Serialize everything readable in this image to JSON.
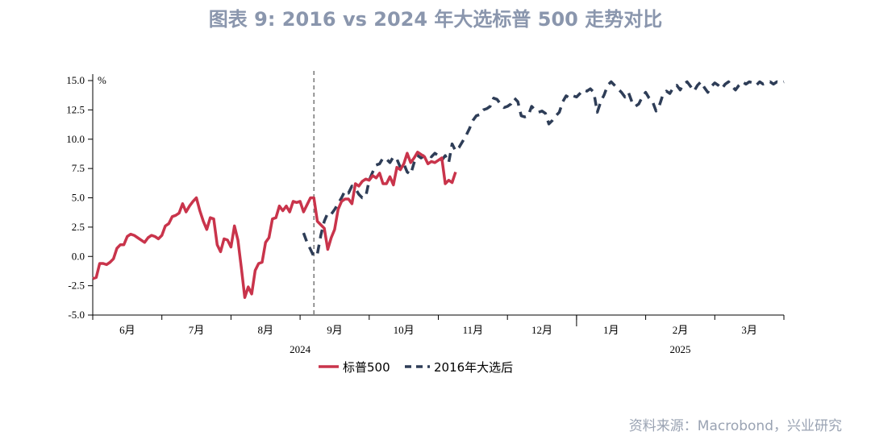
{
  "title": "图表 9:  2016 vs 2024 年大选标普 500 走势对比",
  "source": "资料来源：Macrobond，兴业研究",
  "chart_data": {
    "type": "line",
    "ylabel": "%",
    "ylim": [
      -5.0,
      15.0
    ],
    "yticks": [
      "15.0",
      "12.5",
      "10.0",
      "7.5",
      "5.0",
      "2.5",
      "0.0",
      "-2.5",
      "-5.0"
    ],
    "xlim": [
      0,
      200
    ],
    "months": [
      {
        "label": "6月",
        "start": 0,
        "end": 20
      },
      {
        "label": "7月",
        "start": 20,
        "end": 40
      },
      {
        "label": "8月",
        "start": 40,
        "end": 60
      },
      {
        "label": "9月",
        "start": 60,
        "end": 80
      },
      {
        "label": "10月",
        "start": 80,
        "end": 100
      },
      {
        "label": "11月",
        "start": 100,
        "end": 120
      },
      {
        "label": "12月",
        "start": 120,
        "end": 140
      },
      {
        "label": "1月",
        "start": 140,
        "end": 160
      },
      {
        "label": "2月",
        "start": 160,
        "end": 180
      },
      {
        "label": "3月",
        "start": 180,
        "end": 200
      }
    ],
    "years": [
      {
        "label": "2024",
        "at": 60
      },
      {
        "label": "2025",
        "at": 170
      }
    ],
    "year_divider_at": 140,
    "election_marker_at": 64,
    "series": [
      {
        "name": "标普500",
        "color": "#c9344b",
        "style": "solid",
        "points": [
          [
            0,
            -1.9
          ],
          [
            1,
            -1.8
          ],
          [
            2,
            -0.6
          ],
          [
            3,
            -0.6
          ],
          [
            4,
            -0.7
          ],
          [
            5,
            -0.5
          ],
          [
            6,
            -0.2
          ],
          [
            7,
            0.7
          ],
          [
            8,
            1.0
          ],
          [
            9,
            1.0
          ],
          [
            10,
            1.7
          ],
          [
            11,
            1.9
          ],
          [
            12,
            1.8
          ],
          [
            13,
            1.6
          ],
          [
            14,
            1.4
          ],
          [
            15,
            1.2
          ],
          [
            16,
            1.6
          ],
          [
            17,
            1.8
          ],
          [
            18,
            1.7
          ],
          [
            19,
            1.5
          ],
          [
            20,
            1.8
          ],
          [
            21,
            2.6
          ],
          [
            22,
            2.8
          ],
          [
            23,
            3.4
          ],
          [
            24,
            3.5
          ],
          [
            25,
            3.7
          ],
          [
            26,
            4.5
          ],
          [
            27,
            3.8
          ],
          [
            28,
            4.3
          ],
          [
            29,
            4.7
          ],
          [
            30,
            5.0
          ],
          [
            31,
            3.9
          ],
          [
            32,
            3.0
          ],
          [
            33,
            2.3
          ],
          [
            34,
            3.3
          ],
          [
            35,
            3.2
          ],
          [
            36,
            1.0
          ],
          [
            37,
            0.4
          ],
          [
            38,
            1.5
          ],
          [
            39,
            1.4
          ],
          [
            40,
            0.8
          ],
          [
            41,
            2.6
          ],
          [
            42,
            1.4
          ],
          [
            43,
            -1.0
          ],
          [
            44,
            -3.5
          ],
          [
            45,
            -2.6
          ],
          [
            46,
            -3.2
          ],
          [
            47,
            -1.2
          ],
          [
            48,
            -0.6
          ],
          [
            49,
            -0.5
          ],
          [
            50,
            1.2
          ],
          [
            51,
            1.6
          ],
          [
            52,
            3.2
          ],
          [
            53,
            3.3
          ],
          [
            54,
            4.3
          ],
          [
            55,
            3.9
          ],
          [
            56,
            4.3
          ],
          [
            57,
            3.8
          ],
          [
            58,
            4.7
          ],
          [
            59,
            4.6
          ],
          [
            60,
            4.7
          ],
          [
            61,
            3.8
          ],
          [
            62,
            4.4
          ],
          [
            63,
            5.0
          ],
          [
            64,
            5.0
          ],
          [
            65,
            3.0
          ],
          [
            66,
            2.7
          ],
          [
            67,
            2.4
          ],
          [
            68,
            0.6
          ],
          [
            69,
            1.6
          ],
          [
            70,
            2.3
          ],
          [
            71,
            4.0
          ],
          [
            72,
            4.7
          ],
          [
            73,
            4.9
          ],
          [
            74,
            4.9
          ],
          [
            75,
            4.5
          ],
          [
            76,
            6.2
          ],
          [
            77,
            6.0
          ],
          [
            78,
            6.4
          ],
          [
            79,
            6.6
          ],
          [
            80,
            6.5
          ],
          [
            81,
            6.9
          ],
          [
            82,
            6.7
          ],
          [
            83,
            7.1
          ],
          [
            84,
            6.2
          ],
          [
            85,
            6.2
          ],
          [
            86,
            6.8
          ],
          [
            87,
            6.1
          ],
          [
            88,
            7.6
          ],
          [
            89,
            7.4
          ],
          [
            90,
            7.9
          ],
          [
            91,
            8.8
          ],
          [
            92,
            8.0
          ],
          [
            93,
            8.4
          ],
          [
            94,
            8.9
          ],
          [
            95,
            8.7
          ],
          [
            96,
            8.5
          ],
          [
            97,
            7.9
          ],
          [
            98,
            8.1
          ],
          [
            99,
            8.0
          ],
          [
            100,
            8.2
          ],
          [
            101,
            8.4
          ],
          [
            102,
            6.2
          ],
          [
            103,
            6.5
          ],
          [
            104,
            6.3
          ],
          [
            105,
            7.2
          ]
        ]
      },
      {
        "name": "2016年大选后",
        "color": "#2e3d57",
        "style": "dashed",
        "points": [
          [
            61,
            2.0
          ],
          [
            62,
            1.2
          ],
          [
            63,
            0.6
          ],
          [
            64,
            0.0
          ],
          [
            65,
            0.2
          ],
          [
            66,
            1.8
          ],
          [
            67,
            3.0
          ],
          [
            68,
            3.7
          ],
          [
            69,
            3.6
          ],
          [
            70,
            4.0
          ],
          [
            71,
            4.5
          ],
          [
            72,
            5.0
          ],
          [
            73,
            5.6
          ],
          [
            74,
            5.4
          ],
          [
            75,
            6.0
          ],
          [
            76,
            5.8
          ],
          [
            77,
            5.3
          ],
          [
            78,
            5.0
          ],
          [
            79,
            5.1
          ],
          [
            80,
            6.5
          ],
          [
            81,
            7.2
          ],
          [
            82,
            7.8
          ],
          [
            83,
            7.9
          ],
          [
            84,
            8.4
          ],
          [
            85,
            8.3
          ],
          [
            86,
            8.0
          ],
          [
            87,
            8.5
          ],
          [
            88,
            8.3
          ],
          [
            89,
            7.6
          ],
          [
            90,
            7.9
          ],
          [
            91,
            7.2
          ],
          [
            92,
            7.0
          ],
          [
            93,
            8.0
          ],
          [
            94,
            8.6
          ],
          [
            95,
            8.4
          ],
          [
            96,
            8.6
          ],
          [
            97,
            8.7
          ],
          [
            98,
            8.5
          ],
          [
            99,
            8.8
          ],
          [
            100,
            8.6
          ],
          [
            101,
            8.2
          ],
          [
            102,
            8.6
          ],
          [
            103,
            8.0
          ],
          [
            104,
            9.6
          ],
          [
            105,
            9.0
          ],
          [
            106,
            9.3
          ],
          [
            107,
            9.8
          ],
          [
            108,
            10.3
          ],
          [
            109,
            10.9
          ],
          [
            110,
            11.6
          ],
          [
            111,
            12.0
          ],
          [
            112,
            12.1
          ],
          [
            113,
            12.5
          ],
          [
            114,
            12.6
          ],
          [
            115,
            12.8
          ],
          [
            116,
            13.5
          ],
          [
            117,
            13.4
          ],
          [
            118,
            13.0
          ],
          [
            119,
            12.7
          ],
          [
            120,
            12.8
          ],
          [
            121,
            13.0
          ],
          [
            122,
            13.5
          ],
          [
            123,
            13.2
          ],
          [
            124,
            12.0
          ],
          [
            125,
            11.9
          ],
          [
            126,
            12.0
          ],
          [
            127,
            12.8
          ],
          [
            128,
            12.5
          ],
          [
            129,
            12.3
          ],
          [
            130,
            12.4
          ],
          [
            131,
            12.2
          ],
          [
            132,
            11.3
          ],
          [
            133,
            11.6
          ],
          [
            134,
            12.0
          ],
          [
            135,
            12.3
          ],
          [
            136,
            13.2
          ],
          [
            137,
            13.7
          ],
          [
            138,
            13.5
          ],
          [
            139,
            13.7
          ],
          [
            140,
            13.6
          ],
          [
            141,
            13.9
          ],
          [
            142,
            14.2
          ],
          [
            143,
            14.1
          ],
          [
            144,
            14.3
          ],
          [
            145,
            14.0
          ],
          [
            146,
            12.3
          ],
          [
            147,
            13.2
          ],
          [
            148,
            13.8
          ],
          [
            149,
            14.6
          ],
          [
            150,
            14.9
          ],
          [
            151,
            14.6
          ],
          [
            152,
            14.3
          ],
          [
            153,
            14.0
          ],
          [
            154,
            13.6
          ],
          [
            155,
            14.0
          ],
          [
            156,
            13.2
          ],
          [
            157,
            12.8
          ],
          [
            158,
            13.0
          ],
          [
            159,
            13.6
          ],
          [
            160,
            14.0
          ],
          [
            161,
            13.5
          ],
          [
            162,
            13.2
          ],
          [
            163,
            12.4
          ],
          [
            164,
            12.9
          ],
          [
            165,
            13.8
          ],
          [
            166,
            14.1
          ],
          [
            167,
            13.9
          ],
          [
            168,
            14.4
          ],
          [
            169,
            14.6
          ],
          [
            170,
            14.2
          ],
          [
            171,
            14.7
          ],
          [
            172,
            14.9
          ],
          [
            173,
            14.5
          ],
          [
            174,
            14.1
          ],
          [
            175,
            14.6
          ],
          [
            176,
            14.9
          ],
          [
            177,
            14.4
          ],
          [
            178,
            14.0
          ],
          [
            179,
            14.5
          ],
          [
            180,
            14.8
          ],
          [
            181,
            14.6
          ],
          [
            182,
            14.3
          ],
          [
            183,
            14.7
          ],
          [
            184,
            14.9
          ],
          [
            185,
            14.5
          ],
          [
            186,
            14.2
          ],
          [
            187,
            14.6
          ],
          [
            188,
            14.9
          ],
          [
            189,
            14.7
          ],
          [
            190,
            14.9
          ],
          [
            191,
            14.8
          ],
          [
            192,
            14.6
          ],
          [
            193,
            14.9
          ],
          [
            194,
            14.7
          ],
          [
            195,
            14.8
          ],
          [
            196,
            14.9
          ],
          [
            197,
            14.7
          ],
          [
            198,
            14.9
          ],
          [
            199,
            14.8
          ],
          [
            200,
            14.9
          ]
        ]
      }
    ]
  }
}
